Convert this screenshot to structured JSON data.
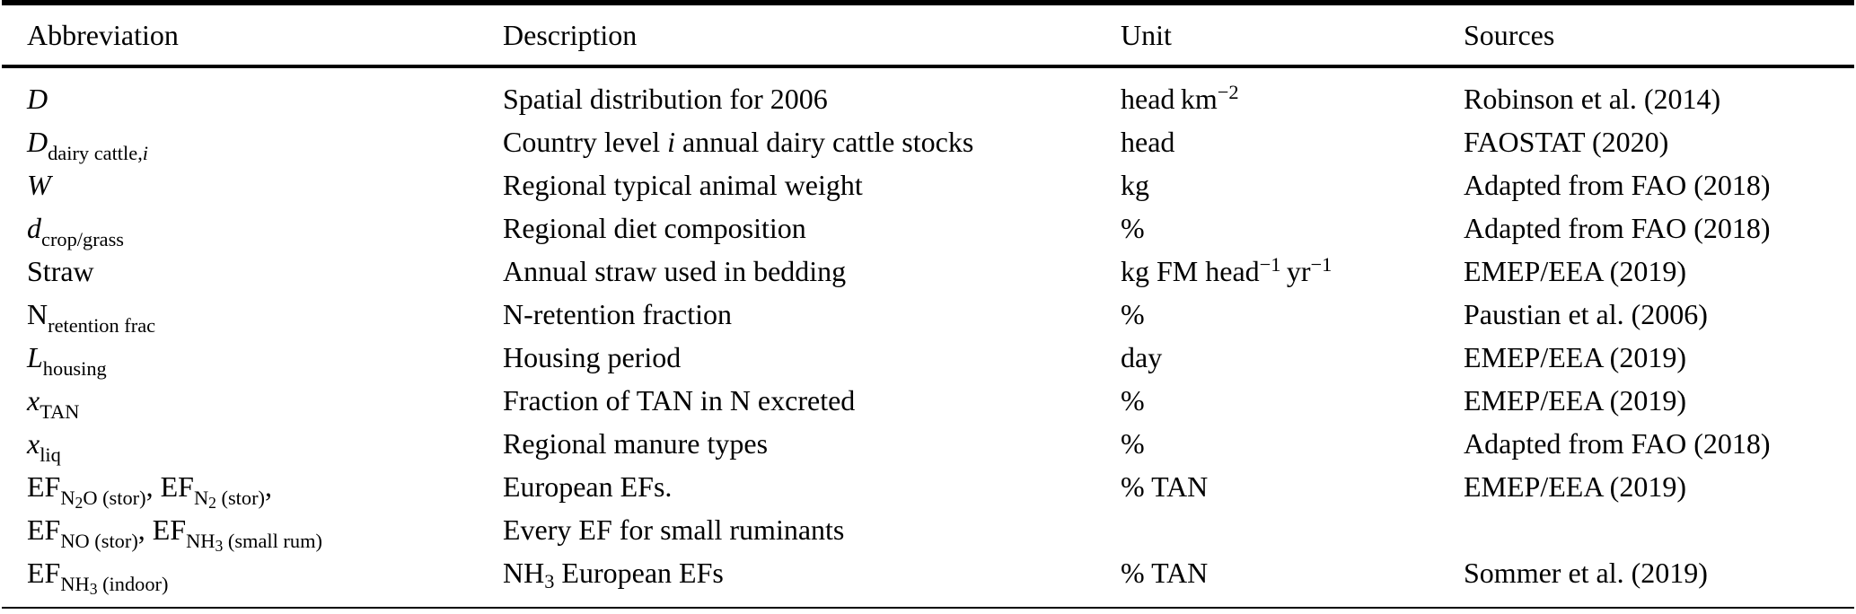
{
  "table": {
    "columns": [
      {
        "label": "Abbreviation"
      },
      {
        "label": "Description"
      },
      {
        "label": "Unit"
      },
      {
        "label": "Sources"
      }
    ],
    "rows": [
      {
        "abbr": [
          {
            "t": "D",
            "s": "i"
          }
        ],
        "desc": [
          {
            "t": "Spatial distribution for 2006"
          }
        ],
        "unit": [
          {
            "t": "head km"
          },
          {
            "t": "−2",
            "s": "sup"
          }
        ],
        "src": [
          {
            "t": "Robinson et al. (2014)"
          }
        ]
      },
      {
        "abbr": [
          {
            "t": "D",
            "s": "i"
          },
          {
            "t": "dairy cattle,",
            "s": "sub"
          },
          {
            "t": "i",
            "s": "subi"
          }
        ],
        "desc": [
          {
            "t": "Country level "
          },
          {
            "t": "i",
            "s": "i"
          },
          {
            "t": " annual dairy cattle stocks"
          }
        ],
        "unit": [
          {
            "t": "head"
          }
        ],
        "src": [
          {
            "t": "FAOSTAT (2020)"
          }
        ]
      },
      {
        "abbr": [
          {
            "t": "W",
            "s": "i"
          }
        ],
        "desc": [
          {
            "t": "Regional typical animal weight"
          }
        ],
        "unit": [
          {
            "t": "kg"
          }
        ],
        "src": [
          {
            "t": "Adapted from FAO (2018)"
          }
        ]
      },
      {
        "abbr": [
          {
            "t": "d",
            "s": "i"
          },
          {
            "t": "crop/grass",
            "s": "sub"
          }
        ],
        "desc": [
          {
            "t": "Regional diet composition"
          }
        ],
        "unit": [
          {
            "t": "%"
          }
        ],
        "src": [
          {
            "t": "Adapted from FAO (2018)"
          }
        ]
      },
      {
        "abbr": [
          {
            "t": "Straw"
          }
        ],
        "desc": [
          {
            "t": "Annual straw used in bedding"
          }
        ],
        "unit": [
          {
            "t": "kg FM head"
          },
          {
            "t": "−1",
            "s": "sup"
          },
          {
            "t": " yr"
          },
          {
            "t": "−1",
            "s": "sup"
          }
        ],
        "src": [
          {
            "t": "EMEP/EEA (2019)"
          }
        ]
      },
      {
        "abbr": [
          {
            "t": "N"
          },
          {
            "t": "retention frac",
            "s": "sub"
          }
        ],
        "desc": [
          {
            "t": "N-retention fraction"
          }
        ],
        "unit": [
          {
            "t": "%"
          }
        ],
        "src": [
          {
            "t": "Paustian et al. (2006)"
          }
        ]
      },
      {
        "abbr": [
          {
            "t": "L",
            "s": "i"
          },
          {
            "t": "housing",
            "s": "sub"
          }
        ],
        "desc": [
          {
            "t": "Housing period"
          }
        ],
        "unit": [
          {
            "t": "day"
          }
        ],
        "src": [
          {
            "t": "EMEP/EEA (2019)"
          }
        ]
      },
      {
        "abbr": [
          {
            "t": "x",
            "s": "i"
          },
          {
            "t": "TAN",
            "s": "sub"
          }
        ],
        "desc": [
          {
            "t": "Fraction of TAN in N excreted"
          }
        ],
        "unit": [
          {
            "t": "%"
          }
        ],
        "src": [
          {
            "t": "EMEP/EEA (2019)"
          }
        ]
      },
      {
        "abbr": [
          {
            "t": "x",
            "s": "i"
          },
          {
            "t": "liq",
            "s": "sub"
          }
        ],
        "desc": [
          {
            "t": "Regional manure types"
          }
        ],
        "unit": [
          {
            "t": "%"
          }
        ],
        "src": [
          {
            "t": "Adapted from FAO (2018)"
          }
        ]
      },
      {
        "abbr": [
          {
            "t": "EF"
          },
          {
            "t": "N",
            "s": "sub"
          },
          {
            "t": "2",
            "s": "sub2"
          },
          {
            "t": "O (stor)",
            "s": "sub"
          },
          {
            "t": ", "
          },
          {
            "t": "EF"
          },
          {
            "t": "N",
            "s": "sub"
          },
          {
            "t": "2",
            "s": "sub2"
          },
          {
            "t": " (stor)",
            "s": "sub"
          },
          {
            "t": ","
          }
        ],
        "desc": [
          {
            "t": "European EFs."
          }
        ],
        "unit": [
          {
            "t": "% TAN"
          }
        ],
        "src": [
          {
            "t": "EMEP/EEA (2019)"
          }
        ]
      },
      {
        "abbr": [
          {
            "t": "EF"
          },
          {
            "t": "NO (stor)",
            "s": "sub"
          },
          {
            "t": ", "
          },
          {
            "t": "EF"
          },
          {
            "t": "NH",
            "s": "sub"
          },
          {
            "t": "3",
            "s": "sub2"
          },
          {
            "t": " (small rum)",
            "s": "sub"
          }
        ],
        "desc": [
          {
            "t": "Every EF for small ruminants"
          }
        ],
        "unit": [],
        "src": []
      },
      {
        "abbr": [
          {
            "t": "EF"
          },
          {
            "t": "NH",
            "s": "sub"
          },
          {
            "t": "3",
            "s": "sub2"
          },
          {
            "t": " (indoor)",
            "s": "sub"
          }
        ],
        "desc": [
          {
            "t": "NH"
          },
          {
            "t": "3",
            "s": "sub3"
          },
          {
            "t": " European EFs"
          }
        ],
        "unit": [
          {
            "t": "% TAN"
          }
        ],
        "src": [
          {
            "t": "Sommer et al. (2019)"
          }
        ]
      }
    ]
  }
}
